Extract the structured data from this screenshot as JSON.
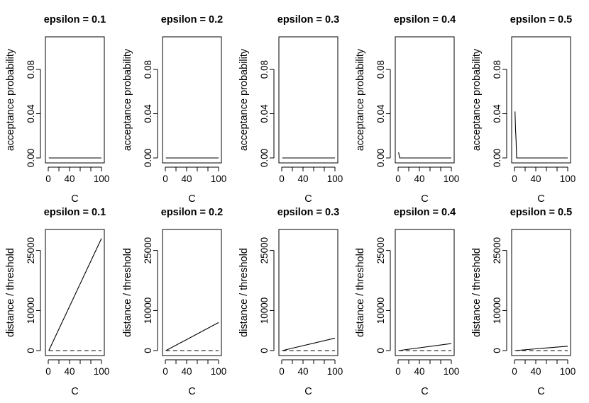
{
  "chart_data": [
    {
      "type": "line",
      "title": "epsilon = 0.1",
      "xlabel": "C",
      "ylabel": "acceptance probability",
      "xlim": [
        0,
        100
      ],
      "ylim": [
        0,
        0.105
      ],
      "xticks": [
        "0",
        "40",
        "100"
      ],
      "yticks": [
        "0.00",
        "0.04",
        "0.08"
      ],
      "series": [
        {
          "x": [
            1,
            100
          ],
          "y": [
            0,
            0
          ]
        }
      ]
    },
    {
      "type": "line",
      "title": "epsilon = 0.2",
      "xlabel": "C",
      "ylabel": "acceptance probability",
      "xlim": [
        0,
        100
      ],
      "ylim": [
        0,
        0.105
      ],
      "xticks": [
        "0",
        "40",
        "100"
      ],
      "yticks": [
        "0.00",
        "0.04",
        "0.08"
      ],
      "series": [
        {
          "x": [
            1,
            100
          ],
          "y": [
            0,
            0
          ]
        }
      ]
    },
    {
      "type": "line",
      "title": "epsilon = 0.3",
      "xlabel": "C",
      "ylabel": "acceptance probability",
      "xlim": [
        0,
        100
      ],
      "ylim": [
        0,
        0.105
      ],
      "xticks": [
        "0",
        "40",
        "100"
      ],
      "yticks": [
        "0.00",
        "0.04",
        "0.08"
      ],
      "series": [
        {
          "x": [
            1,
            100
          ],
          "y": [
            0,
            0
          ]
        }
      ]
    },
    {
      "type": "line",
      "title": "epsilon = 0.4",
      "xlabel": "C",
      "ylabel": "acceptance probability",
      "xlim": [
        0,
        100
      ],
      "ylim": [
        0,
        0.105
      ],
      "xticks": [
        "0",
        "40",
        "100"
      ],
      "yticks": [
        "0.00",
        "0.04",
        "0.08"
      ],
      "series": [
        {
          "x": [
            1,
            2,
            3,
            100
          ],
          "y": [
            0.005,
            0.002,
            0,
            0
          ]
        }
      ]
    },
    {
      "type": "line",
      "title": "epsilon = 0.5",
      "xlabel": "C",
      "ylabel": "acceptance probability",
      "xlim": [
        0,
        100
      ],
      "ylim": [
        0,
        0.105
      ],
      "xticks": [
        "0",
        "40",
        "100"
      ],
      "yticks": [
        "0.00",
        "0.04",
        "0.08"
      ],
      "series": [
        {
          "x": [
            1,
            2,
            3,
            4,
            100
          ],
          "y": [
            0.042,
            0.025,
            0.016,
            0,
            0
          ]
        }
      ]
    },
    {
      "type": "line",
      "title": "epsilon = 0.1",
      "xlabel": "C",
      "ylabel": "distance / threshold",
      "xlim": [
        0,
        100
      ],
      "ylim": [
        0,
        29000
      ],
      "xticks": [
        "0",
        "40",
        "100"
      ],
      "yticks": [
        "0",
        "10000",
        "25000"
      ],
      "series": [
        {
          "x": [
            1,
            100
          ],
          "y": [
            0,
            28000
          ],
          "dash": false
        },
        {
          "x": [
            1,
            100
          ],
          "y": [
            0,
            0
          ],
          "dash": true
        }
      ]
    },
    {
      "type": "line",
      "title": "epsilon = 0.2",
      "xlabel": "C",
      "ylabel": "distance / threshold",
      "xlim": [
        0,
        100
      ],
      "ylim": [
        0,
        29000
      ],
      "xticks": [
        "0",
        "40",
        "100"
      ],
      "yticks": [
        "0",
        "10000",
        "25000"
      ],
      "series": [
        {
          "x": [
            1,
            100
          ],
          "y": [
            0,
            7000
          ],
          "dash": false
        },
        {
          "x": [
            1,
            100
          ],
          "y": [
            0,
            0
          ],
          "dash": true
        }
      ]
    },
    {
      "type": "line",
      "title": "epsilon = 0.3",
      "xlabel": "C",
      "ylabel": "distance / threshold",
      "xlim": [
        0,
        100
      ],
      "ylim": [
        0,
        29000
      ],
      "xticks": [
        "0",
        "40",
        "100"
      ],
      "yticks": [
        "0",
        "10000",
        "25000"
      ],
      "series": [
        {
          "x": [
            1,
            100
          ],
          "y": [
            0,
            3100
          ],
          "dash": false
        },
        {
          "x": [
            1,
            100
          ],
          "y": [
            0,
            0
          ],
          "dash": true
        }
      ]
    },
    {
      "type": "line",
      "title": "epsilon = 0.4",
      "xlabel": "C",
      "ylabel": "distance / threshold",
      "xlim": [
        0,
        100
      ],
      "ylim": [
        0,
        29000
      ],
      "xticks": [
        "0",
        "40",
        "100"
      ],
      "yticks": [
        "0",
        "10000",
        "25000"
      ],
      "series": [
        {
          "x": [
            1,
            100
          ],
          "y": [
            0,
            1750
          ],
          "dash": false
        },
        {
          "x": [
            1,
            100
          ],
          "y": [
            0,
            0
          ],
          "dash": true
        }
      ]
    },
    {
      "type": "line",
      "title": "epsilon = 0.5",
      "xlabel": "C",
      "ylabel": "distance / threshold",
      "xlim": [
        0,
        100
      ],
      "ylim": [
        0,
        29000
      ],
      "xticks": [
        "0",
        "40",
        "100"
      ],
      "yticks": [
        "0",
        "10000",
        "25000"
      ],
      "series": [
        {
          "x": [
            1,
            100
          ],
          "y": [
            0,
            1100
          ],
          "dash": false
        },
        {
          "x": [
            1,
            100
          ],
          "y": [
            0,
            0
          ],
          "dash": true
        }
      ]
    }
  ]
}
